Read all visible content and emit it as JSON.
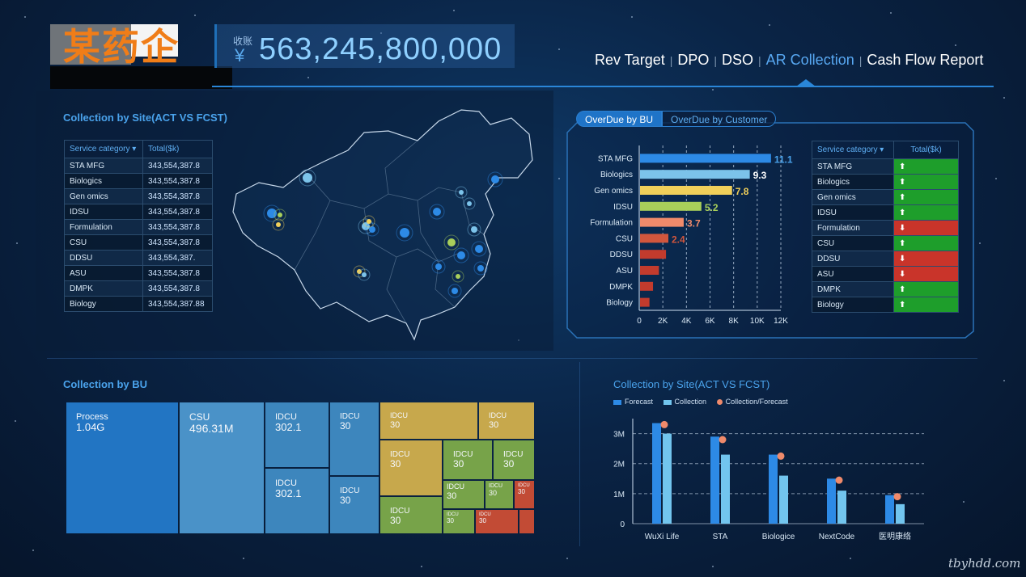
{
  "header": {
    "logo_text": "某药企",
    "revenue_label": "收账",
    "revenue_currency": "¥",
    "revenue_value": "563,245,800,000"
  },
  "nav": {
    "items": [
      {
        "label": "Rev Target",
        "active": false
      },
      {
        "label": "DPO",
        "active": false
      },
      {
        "label": "DSO",
        "active": false
      },
      {
        "label": "AR Collection",
        "active": true
      },
      {
        "label": "Cash Flow Report",
        "active": false
      }
    ],
    "separator": "|"
  },
  "site_table": {
    "title": "Collection by Site(ACT VS FCST)",
    "col1": "Service category ▾",
    "col2": "Total($k)",
    "rows": [
      {
        "name": "STA MFG",
        "value": "343,554,387.8"
      },
      {
        "name": "Biologics",
        "value": "343,554,387.8"
      },
      {
        "name": "Gen omics",
        "value": "343,554,387.8"
      },
      {
        "name": "IDSU",
        "value": "343,554,387.8"
      },
      {
        "name": "Formulation",
        "value": "343,554,387.8"
      },
      {
        "name": "CSU",
        "value": "343,554,387.8"
      },
      {
        "name": "DDSU",
        "value": "343,554,387."
      },
      {
        "name": "ASU",
        "value": "343,554,387.8"
      },
      {
        "name": "DMPK",
        "value": "343,554,387.8"
      },
      {
        "name": "Biology",
        "value": "343,554,387.88"
      }
    ]
  },
  "overdue": {
    "tabs": [
      "OverDue by BU",
      "OverDue by Customer"
    ],
    "active_tab": 0,
    "table_col1": "Service category ▾",
    "table_col2": "Total($k)",
    "status": [
      {
        "name": "STA MFG",
        "dir": "up",
        "color": "#1e9e2b"
      },
      {
        "name": "Biologics",
        "dir": "up",
        "color": "#1e9e2b"
      },
      {
        "name": "Gen omics",
        "dir": "up",
        "color": "#1e9e2b"
      },
      {
        "name": "IDSU",
        "dir": "up",
        "color": "#1e9e2b"
      },
      {
        "name": "Formulation",
        "dir": "down",
        "color": "#c9342a"
      },
      {
        "name": "CSU",
        "dir": "up",
        "color": "#1e9e2b"
      },
      {
        "name": "DDSU",
        "dir": "down",
        "color": "#c9342a"
      },
      {
        "name": "ASU",
        "dir": "down",
        "color": "#c9342a"
      },
      {
        "name": "DMPK",
        "dir": "up",
        "color": "#1e9e2b"
      },
      {
        "name": "Biology",
        "dir": "up",
        "color": "#1e9e2b"
      }
    ],
    "up_glyph": "⬆",
    "down_glyph": "⬇"
  },
  "bu_treemap": {
    "title": "Collection by BU",
    "tiles": [
      {
        "label": "Process",
        "value": "1.04G"
      },
      {
        "label": "CSU",
        "value": "496.31M"
      },
      {
        "label": "IDCU",
        "value": "302.1"
      },
      {
        "label": "IDCU",
        "value": "302.1"
      },
      {
        "label": "IDCU",
        "value": "30"
      },
      {
        "label": "IDCU",
        "value": "30"
      },
      {
        "label": "IDCU",
        "value": "30"
      },
      {
        "label": "IDCU",
        "value": "30"
      },
      {
        "label": "IDCU",
        "value": "30"
      },
      {
        "label": "IDCU",
        "value": "30"
      },
      {
        "label": "IDCU",
        "value": "30"
      },
      {
        "label": "IDCU",
        "value": "30"
      },
      {
        "label": "IDCU",
        "value": "30"
      },
      {
        "label": "IDCU",
        "value": "30"
      },
      {
        "label": "IDCU",
        "value": "30"
      },
      {
        "label": "IDCU",
        "value": "30"
      },
      {
        "label": "IDCU",
        "value": "30"
      }
    ]
  },
  "chart_data": [
    {
      "type": "bar",
      "orientation": "horizontal",
      "categories": [
        "STA MFG",
        "Biologics",
        "Gen omics",
        "IDSU",
        "Formulation",
        "CSU",
        "DDSU",
        "ASU",
        "DMPK",
        "Biology"
      ],
      "values": [
        11.1,
        9.3,
        7.8,
        5.2,
        3.7,
        2.4,
        2.2,
        1.6,
        1.1,
        0.8
      ],
      "data_labels": [
        "11.1",
        "9.3",
        "7.8",
        "5.2",
        "3.7",
        "2.4",
        "",
        "",
        "",
        ""
      ],
      "colors": [
        "#2d8ae6",
        "#7cc3ea",
        "#f0cf5a",
        "#a9cf5a",
        "#ef8a6b",
        "#d2563d",
        "#c23b2d",
        "#c23b2d",
        "#c23b2d",
        "#c23b2d"
      ],
      "label_colors": [
        "#4aa3ec",
        "#ffffff",
        "#f0cf5a",
        "#a9cf5a",
        "#ef8a6b",
        "#d2563d",
        "",
        "",
        "",
        ""
      ],
      "xticks": [
        "0",
        "2K",
        "4K",
        "6K",
        "8K",
        "10K",
        "12K"
      ],
      "xlim": [
        0,
        12
      ],
      "grid": true
    },
    {
      "type": "bar",
      "title": "Collection by Site(ACT VS FCST)",
      "categories": [
        "WuXi Life",
        "STA",
        "Biologice",
        "NextCode",
        "医明康络"
      ],
      "series": [
        {
          "name": "Forecast",
          "values": [
            3.35,
            2.9,
            2.3,
            1.5,
            0.95
          ],
          "color": "#2d8ae6"
        },
        {
          "name": "Collection",
          "values": [
            3.0,
            2.3,
            1.6,
            1.1,
            0.65
          ],
          "color": "#72c5ee"
        },
        {
          "name": "Collection/Forecast",
          "values": [
            3.3,
            2.8,
            2.25,
            1.45,
            0.9
          ],
          "color": "#ef8a6b",
          "kind": "point"
        }
      ],
      "yticks": [
        "0",
        "1M",
        "2M",
        "3M"
      ],
      "ylim": [
        0,
        3.5
      ],
      "legend": "top-left",
      "grid": true
    }
  ],
  "watermark": "tbyhdd.com"
}
